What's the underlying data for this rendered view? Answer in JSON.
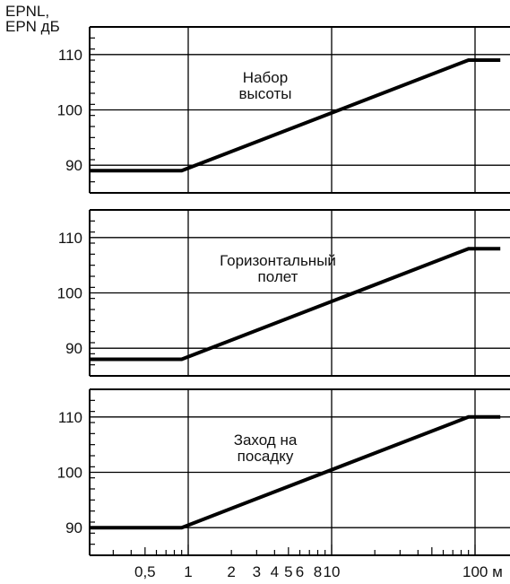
{
  "y_axis_title": [
    "EPNL,",
    "EPN дБ"
  ],
  "x_unit": "м",
  "colors": {
    "line": "#000000",
    "grid": "#000000",
    "text": "#111111"
  },
  "chart_data": [
    {
      "type": "line",
      "title_lines": [
        "Набор",
        "высоты"
      ],
      "xscale": "log",
      "ylim": [
        85,
        115
      ],
      "yticks": [
        90,
        100,
        110
      ],
      "x": [
        0.2,
        0.9,
        90,
        150
      ],
      "y": [
        89,
        89,
        109,
        109
      ],
      "grid": true
    },
    {
      "type": "line",
      "title_lines": [
        "Горизонтальный",
        "полет"
      ],
      "xscale": "log",
      "ylim": [
        85,
        115
      ],
      "yticks": [
        90,
        100,
        110
      ],
      "x": [
        0.2,
        0.9,
        90,
        150
      ],
      "y": [
        88,
        88,
        108,
        108
      ],
      "grid": true
    },
    {
      "type": "line",
      "title_lines": [
        "Заход на",
        "посадку"
      ],
      "xscale": "log",
      "ylim": [
        85,
        115
      ],
      "yticks": [
        90,
        100,
        110
      ],
      "x": [
        0.2,
        0.9,
        90,
        150
      ],
      "y": [
        90,
        90,
        110,
        110
      ],
      "grid": true
    }
  ],
  "x_axis": {
    "xlim": [
      0.2,
      150
    ],
    "tick_labels": [
      {
        "value": 0.5,
        "label": "0,5"
      },
      {
        "value": 1,
        "label": "1"
      },
      {
        "value": 2,
        "label": "2"
      },
      {
        "value": 3,
        "label": "3"
      },
      {
        "value": 4,
        "label": "4"
      },
      {
        "value": 5,
        "label": "5"
      },
      {
        "value": 6,
        "label": "6"
      },
      {
        "value": 8,
        "label": "8"
      },
      {
        "value": 10,
        "label": "10"
      },
      {
        "value": 100,
        "label": "100 м"
      }
    ]
  }
}
